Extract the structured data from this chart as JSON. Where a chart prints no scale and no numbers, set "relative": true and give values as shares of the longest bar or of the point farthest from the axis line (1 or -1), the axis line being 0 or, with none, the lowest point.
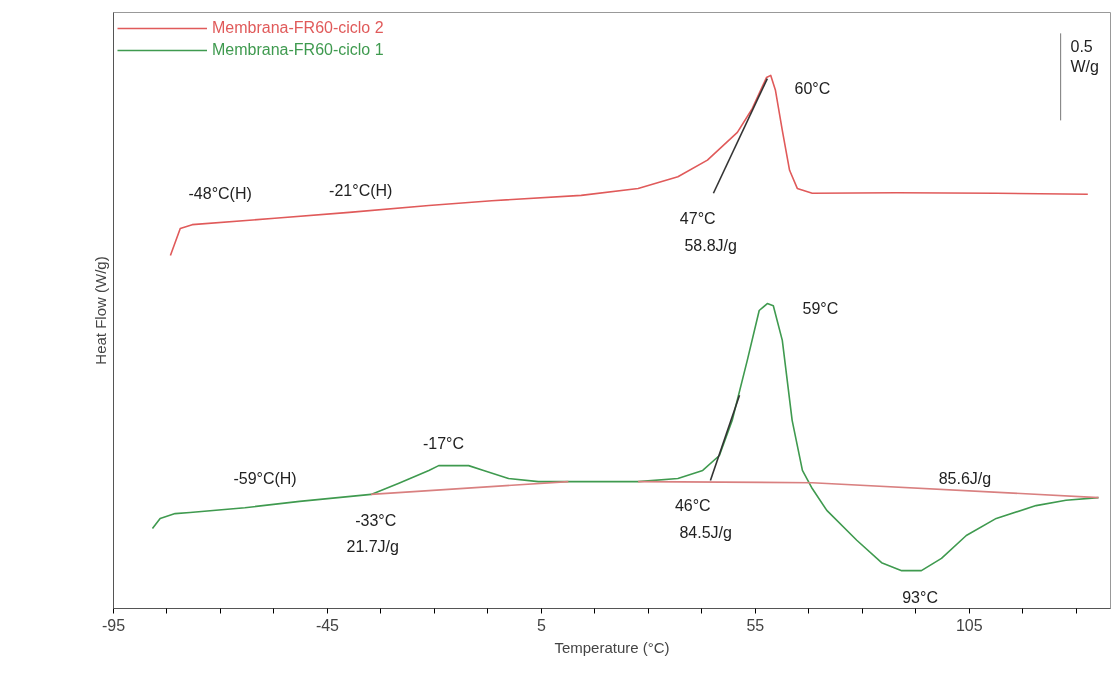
{
  "chart_data": {
    "type": "line",
    "relative": true,
    "xlabel": "Temperature (°C)",
    "ylabel": "Heat Flow (W/g)",
    "xlim": [
      -95,
      138
    ],
    "xticks": [
      -95,
      {
        "value": -82.5,
        "label": null
      },
      {
        "value": -70,
        "label": null
      },
      {
        "value": -57.5,
        "label": null
      },
      -45,
      {
        "value": -32.5,
        "label": null
      },
      {
        "value": -20,
        "label": null
      },
      {
        "value": -7.5,
        "label": null
      },
      5,
      {
        "value": 17.5,
        "label": null
      },
      {
        "value": 30,
        "label": null
      },
      {
        "value": 42.5,
        "label": null
      },
      55,
      {
        "value": 67.5,
        "label": null
      },
      {
        "value": 80,
        "label": null
      },
      {
        "value": 92.5,
        "label": null
      },
      105,
      {
        "value": 117.5,
        "label": null
      },
      {
        "value": 130,
        "label": null
      }
    ],
    "legend": "top left",
    "grid": false,
    "series": [
      {
        "name": "Membrana-FR60-ciclo 2",
        "color": "#e05a5a",
        "x": [
          -81.7,
          -79.4,
          -76.6,
          -57.3,
          -39.9,
          -21.3,
          -6.6,
          14.3,
          27.6,
          36.9,
          43.8,
          50.8,
          54.3,
          57.6,
          58.6,
          59.7,
          61.3,
          63.0,
          64.8,
          68.3,
          88,
          111.3,
          132.7
        ],
        "values": [
          0.662,
          0.713,
          0.72,
          0.732,
          0.743,
          0.756,
          0.765,
          0.775,
          0.788,
          0.81,
          0.841,
          0.893,
          0.938,
          0.996,
          1.0,
          0.972,
          0.897,
          0.822,
          0.788,
          0.779,
          0.78,
          0.779,
          0.777
        ]
      },
      {
        "name": "Membrana-FR60-ciclo 1",
        "color": "#3f9a4f",
        "x": [
          -85.9,
          -84.1,
          -80.6,
          -77.1,
          -64.3,
          -51.5,
          -34.8,
          -28.3,
          -21.3,
          -19,
          -12,
          -8.5,
          -2.7,
          4.3,
          11.3,
          27.6,
          36.9,
          42.7,
          46.6,
          49.6,
          53.1,
          55.9,
          57.8,
          59.2,
          61.3,
          63.6,
          66,
          68.3,
          71.7,
          78.7,
          84.5,
          89.2,
          93.8,
          98.5,
          104.3,
          111.3,
          120.6,
          127.6,
          135.2
        ],
        "values": [
          0.15,
          0.169,
          0.178,
          0.18,
          0.189,
          0.201,
          0.214,
          0.235,
          0.259,
          0.268,
          0.268,
          0.259,
          0.244,
          0.238,
          0.238,
          0.238,
          0.244,
          0.259,
          0.287,
          0.353,
          0.465,
          0.559,
          0.572,
          0.568,
          0.503,
          0.353,
          0.259,
          0.225,
          0.184,
          0.128,
          0.086,
          0.071,
          0.071,
          0.094,
          0.137,
          0.169,
          0.193,
          0.203,
          0.208
        ]
      },
      {
        "color": "#d98080",
        "x": [
          -34.8,
          11.3
        ],
        "values": [
          0.214,
          0.238
        ]
      },
      {
        "color": "#d98080",
        "x": [
          27.6,
          68.3,
          135.2
        ],
        "values": [
          0.238,
          0.236,
          0.208
        ]
      },
      {
        "color": "#333333",
        "x": [
          45.2,
          57.8
        ],
        "values": [
          0.779,
          0.994
        ]
      },
      {
        "color": "#333333",
        "x": [
          44.5,
          51.3
        ],
        "values": [
          0.24,
          0.4
        ]
      }
    ],
    "annotations": [
      "-48°C(H)",
      "-21°C(H)",
      "60°C",
      "47°C",
      "58.8J/g",
      "59°C",
      "-17°C",
      "-59°C(H)",
      "-33°C",
      "21.7J/g",
      "46°C",
      "84.5J/g",
      "85.6J/g",
      "93°C",
      "0.5\nW/g"
    ]
  }
}
